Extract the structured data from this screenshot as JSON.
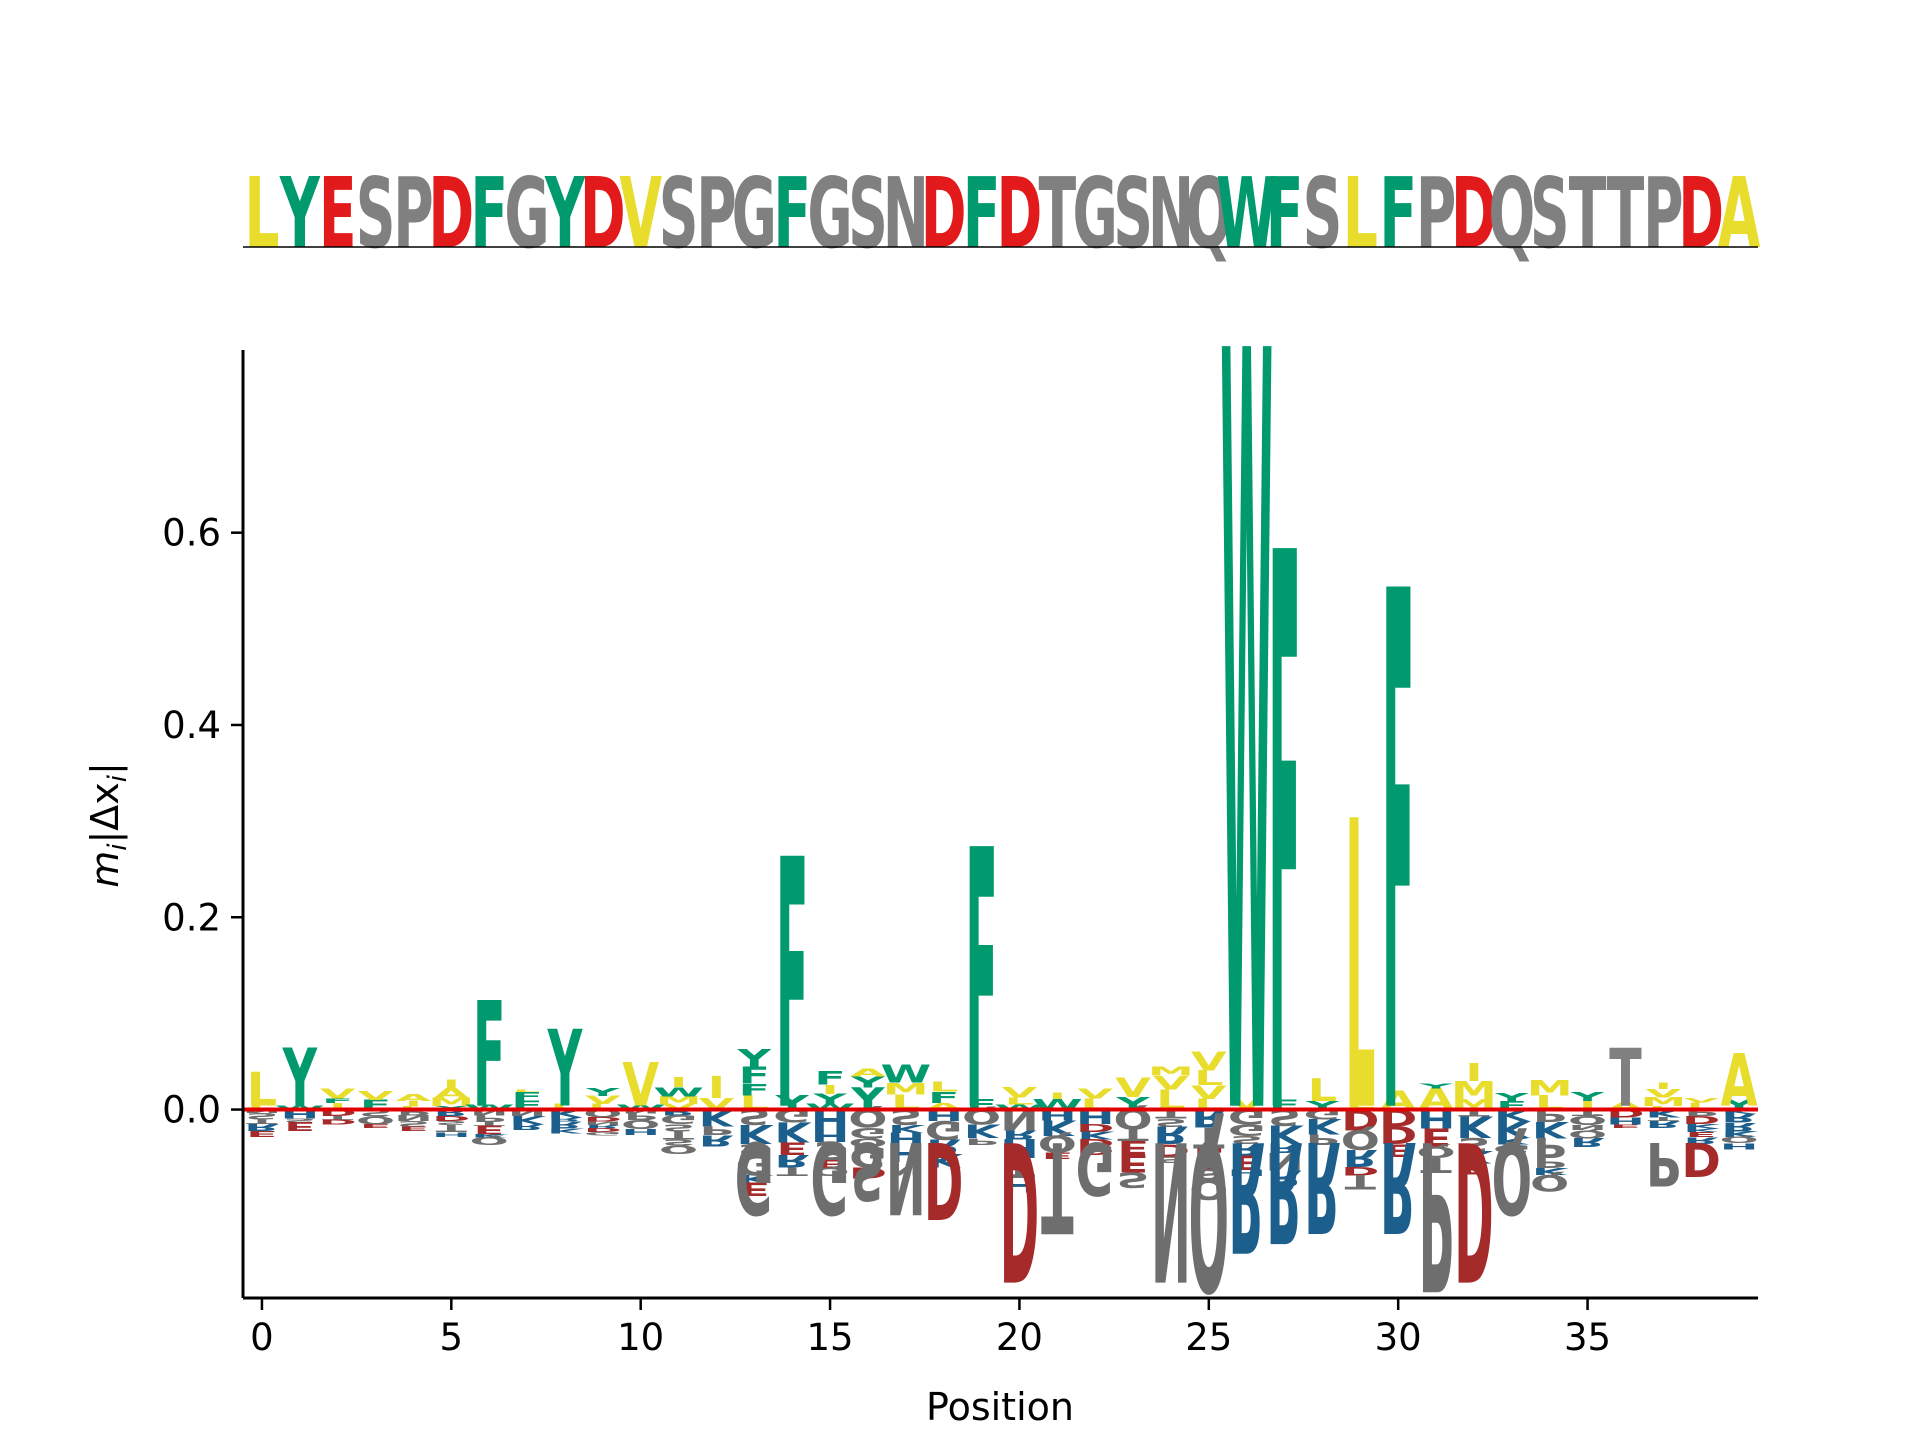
{
  "colors": {
    "hydrophobic": "#e8dc2c",
    "aromatic": "#009a6e",
    "acidic": "#e31a1c",
    "other": "#808080",
    "basic": "#1c5f8c",
    "acidic_dark": "#a52a2a",
    "other_dark": "#6e6e6e",
    "baseline": "#e00000"
  },
  "chart_data": [
    {
      "type": "logo",
      "panel": "reference-sequence",
      "sequence": "LYESPDFGYDVSPGFGSNDFDTGSNQWFSLFPDQSTTPDA",
      "residue_colors": {
        "hydrophobic": [
          "L",
          "V",
          "A",
          "I",
          "M"
        ],
        "aromatic": [
          "Y",
          "F",
          "W"
        ],
        "acidic": [
          "D",
          "E"
        ],
        "other": [
          "S",
          "P",
          "G",
          "N",
          "T",
          "Q",
          "R",
          "K",
          "H",
          "C"
        ]
      }
    },
    {
      "type": "logo",
      "panel": "importance-logo",
      "xlabel": "Position",
      "ylabel_math": {
        "m": "m",
        "sub": "i",
        "mid": "|Δx",
        "sub2": "i",
        "end": "|"
      },
      "xlim": [
        -0.5,
        39.5
      ],
      "ylim": [
        -0.196,
        0.79
      ],
      "xticks": [
        0,
        5,
        10,
        15,
        20,
        25,
        30,
        35
      ],
      "yticks": [
        0.0,
        0.2,
        0.4,
        0.6
      ],
      "ytick_labels": [
        "0.0",
        "0.2",
        "0.4",
        "0.6"
      ],
      "positive": [
        {
          "x": 0,
          "letter": "L",
          "value": 0.035
        },
        {
          "x": 1,
          "letter": "Y",
          "value": 0.06
        },
        {
          "x": 6,
          "letter": "F",
          "value": 0.11
        },
        {
          "x": 8,
          "letter": "Y",
          "value": 0.08
        },
        {
          "x": 10,
          "letter": "V",
          "value": 0.045
        },
        {
          "x": 14,
          "letter": "F",
          "value": 0.26
        },
        {
          "x": 19,
          "letter": "F",
          "value": 0.27
        },
        {
          "x": 26,
          "letter": "W",
          "value": 0.79
        },
        {
          "x": 27,
          "letter": "F",
          "value": 0.58
        },
        {
          "x": 29,
          "letter": "L",
          "value": 0.3
        },
        {
          "x": 30,
          "letter": "F",
          "value": 0.54
        },
        {
          "x": 36,
          "letter": "T",
          "value": 0.06
        },
        {
          "x": 39,
          "letter": "A",
          "value": 0.055
        }
      ],
      "negative": [
        {
          "x": 13,
          "letter": "G",
          "value": -0.11
        },
        {
          "x": 15,
          "letter": "G",
          "value": -0.11
        },
        {
          "x": 16,
          "letter": "S",
          "value": -0.095
        },
        {
          "x": 17,
          "letter": "N",
          "value": -0.11
        },
        {
          "x": 18,
          "letter": "D",
          "value": -0.115
        },
        {
          "x": 20,
          "letter": "D",
          "value": -0.18
        },
        {
          "x": 21,
          "letter": "T",
          "value": -0.13
        },
        {
          "x": 22,
          "letter": "G",
          "value": -0.09
        },
        {
          "x": 24,
          "letter": "N",
          "value": -0.18
        },
        {
          "x": 25,
          "letter": "Q",
          "value": -0.19
        },
        {
          "x": 26,
          "letter": "R",
          "value": -0.15
        },
        {
          "x": 27,
          "letter": "R",
          "value": -0.14
        },
        {
          "x": 28,
          "letter": "R",
          "value": -0.13
        },
        {
          "x": 30,
          "letter": "R",
          "value": -0.13
        },
        {
          "x": 31,
          "letter": "P",
          "value": -0.19
        },
        {
          "x": 32,
          "letter": "D",
          "value": -0.18
        },
        {
          "x": 33,
          "letter": "Q",
          "value": -0.11
        },
        {
          "x": 37,
          "letter": "P",
          "value": -0.08
        },
        {
          "x": 38,
          "letter": "D",
          "value": -0.07
        }
      ],
      "small_positive_letters": [
        "L",
        "F",
        "Y",
        "V",
        "W",
        "I",
        "M",
        "A"
      ],
      "small_negative_letters": [
        "R",
        "K",
        "E",
        "D",
        "S",
        "P",
        "G",
        "Q",
        "T",
        "N",
        "H"
      ]
    }
  ]
}
